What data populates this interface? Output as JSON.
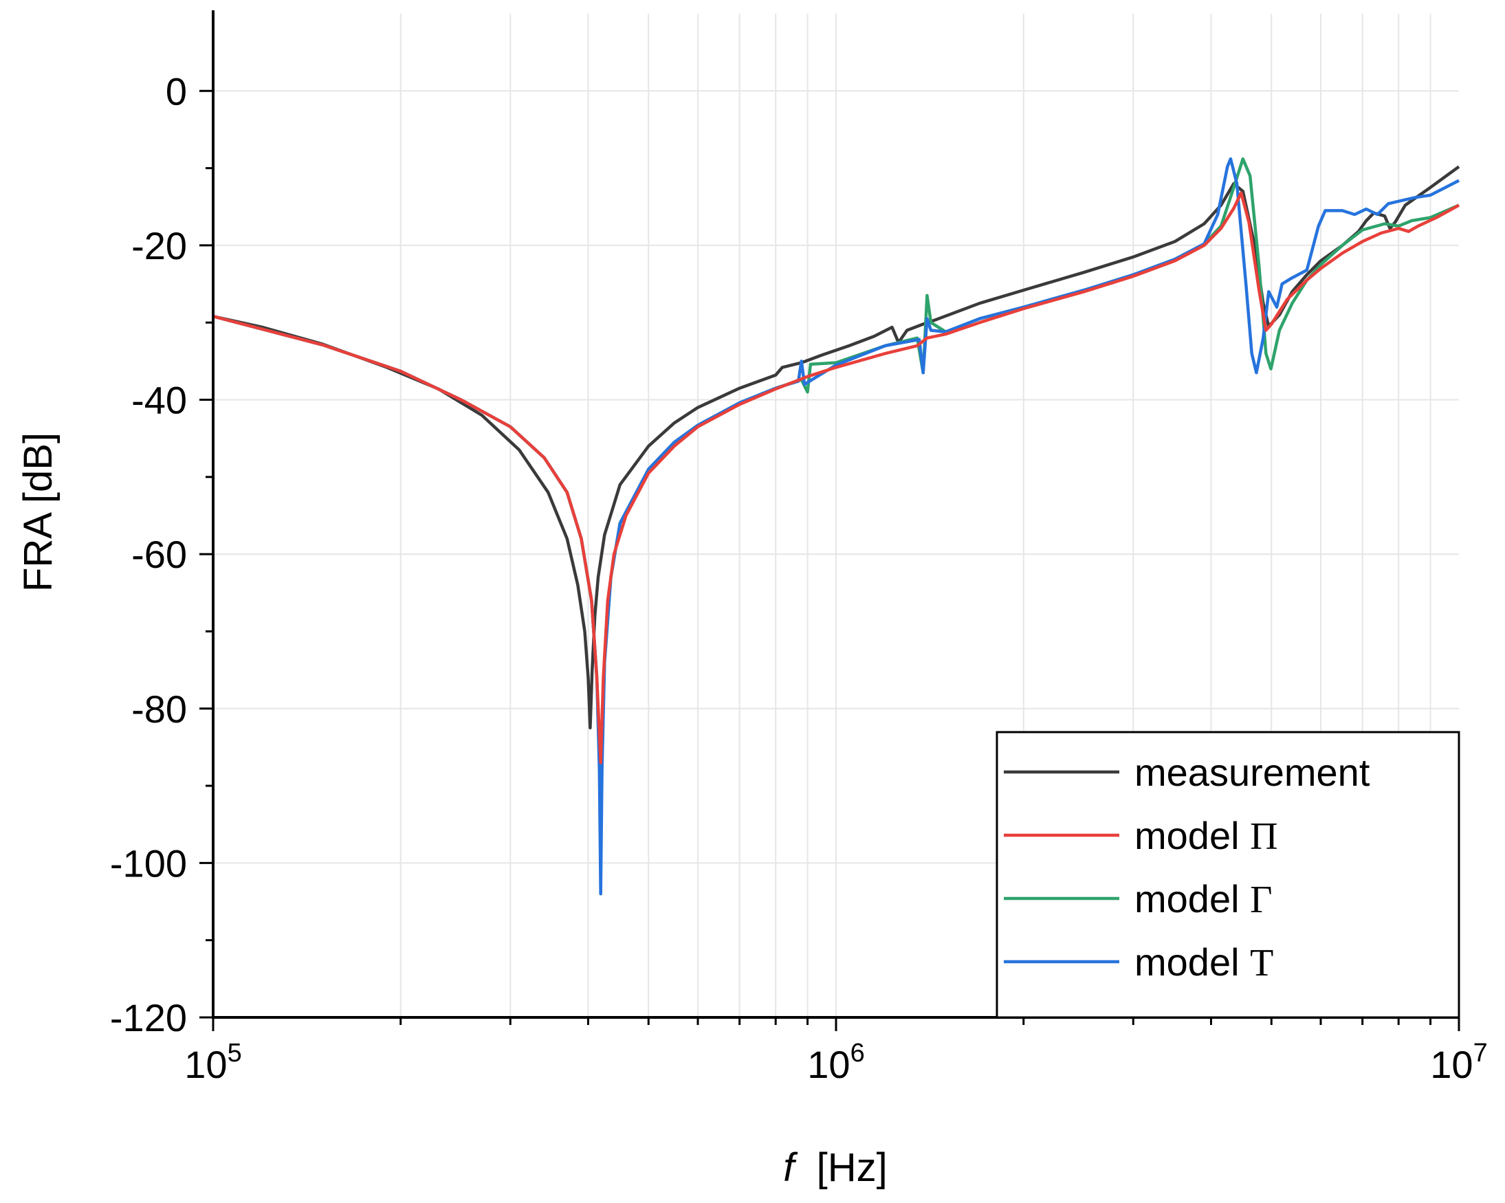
{
  "chart_data": {
    "type": "line",
    "title": "",
    "xlabel": "f",
    "xlabel_unit": "[Hz]",
    "ylabel": "FRA [dB]",
    "xscale": "log",
    "xlim": [
      100000,
      10000000
    ],
    "ylim": [
      -120,
      10
    ],
    "grid": true,
    "legend_position": "bottom-right",
    "y_ticks": [
      0,
      -20,
      -40,
      -60,
      -80,
      -100,
      -120
    ],
    "y_tick_labels": [
      "0",
      "-20",
      "-40",
      "-60",
      "-80",
      "-100",
      "-120"
    ],
    "x_ticks": [
      {
        "value": 100000,
        "base": "10",
        "exp": "5"
      },
      {
        "value": 1000000,
        "base": "10",
        "exp": "6"
      },
      {
        "value": 10000000,
        "base": "10",
        "exp": "7"
      }
    ],
    "series": [
      {
        "name": "measurement",
        "label": "measurement",
        "symbol": "",
        "color": "#3a3a3a",
        "points": [
          [
            100000,
            -29.2
          ],
          [
            120000,
            -30.6
          ],
          [
            150000,
            -32.8
          ],
          [
            190000,
            -35.8
          ],
          [
            230000,
            -38.6
          ],
          [
            270000,
            -42
          ],
          [
            310000,
            -46.5
          ],
          [
            345000,
            -52
          ],
          [
            370000,
            -58
          ],
          [
            385000,
            -64
          ],
          [
            395000,
            -70
          ],
          [
            400000,
            -76
          ],
          [
            403000,
            -82.5
          ],
          [
            406000,
            -75
          ],
          [
            410000,
            -68
          ],
          [
            415000,
            -63
          ],
          [
            425000,
            -57.5
          ],
          [
            450000,
            -51
          ],
          [
            500000,
            -46
          ],
          [
            550000,
            -43
          ],
          [
            600000,
            -41
          ],
          [
            700000,
            -38.5
          ],
          [
            800000,
            -36.8
          ],
          [
            820000,
            -35.8
          ],
          [
            880000,
            -35.2
          ],
          [
            950000,
            -34.2
          ],
          [
            1050000,
            -33
          ],
          [
            1150000,
            -31.8
          ],
          [
            1230000,
            -30.6
          ],
          [
            1260000,
            -32.6
          ],
          [
            1300000,
            -31
          ],
          [
            1380000,
            -30.2
          ],
          [
            1450000,
            -29.6
          ],
          [
            1700000,
            -27.5
          ],
          [
            2000000,
            -25.8
          ],
          [
            2500000,
            -23.5
          ],
          [
            3000000,
            -21.5
          ],
          [
            3500000,
            -19.5
          ],
          [
            3900000,
            -17.2
          ],
          [
            4150000,
            -14.8
          ],
          [
            4350000,
            -12
          ],
          [
            4500000,
            -13
          ],
          [
            4700000,
            -20
          ],
          [
            4850000,
            -27.5
          ],
          [
            4950000,
            -30.5
          ],
          [
            5150000,
            -29
          ],
          [
            5400000,
            -26
          ],
          [
            5700000,
            -23.8
          ],
          [
            6000000,
            -22
          ],
          [
            6500000,
            -20
          ],
          [
            6900000,
            -18.2
          ],
          [
            7100000,
            -16.8
          ],
          [
            7300000,
            -15.8
          ],
          [
            7600000,
            -16.2
          ],
          [
            7750000,
            -17.8
          ],
          [
            7900000,
            -17
          ],
          [
            8200000,
            -14.8
          ],
          [
            9000000,
            -12.5
          ],
          [
            10000000,
            -9.8
          ]
        ]
      },
      {
        "name": "model Γ",
        "label": "model ",
        "symbol": "Γ",
        "color": "#2ea36b",
        "points": [
          [
            100000,
            -29.2
          ],
          [
            150000,
            -32.9
          ],
          [
            200000,
            -36.3
          ],
          [
            250000,
            -40
          ],
          [
            300000,
            -43.5
          ],
          [
            340000,
            -47.5
          ],
          [
            370000,
            -52
          ],
          [
            390000,
            -58
          ],
          [
            405000,
            -66
          ],
          [
            413000,
            -76
          ],
          [
            417000,
            -85
          ],
          [
            419000,
            -96
          ],
          [
            421000,
            -86
          ],
          [
            425000,
            -74
          ],
          [
            435000,
            -63
          ],
          [
            450000,
            -56
          ],
          [
            500000,
            -49
          ],
          [
            550000,
            -45.5
          ],
          [
            600000,
            -43.3
          ],
          [
            700000,
            -40.4
          ],
          [
            800000,
            -38.5
          ],
          [
            880000,
            -37.4
          ],
          [
            900000,
            -39
          ],
          [
            910000,
            -35.4
          ],
          [
            1000000,
            -35.2
          ],
          [
            1200000,
            -33
          ],
          [
            1350000,
            -32
          ],
          [
            1380000,
            -36.5
          ],
          [
            1400000,
            -26.5
          ],
          [
            1420000,
            -30
          ],
          [
            1500000,
            -31.2
          ],
          [
            1700000,
            -29.5
          ],
          [
            2000000,
            -28
          ],
          [
            2500000,
            -25.8
          ],
          [
            3000000,
            -23.8
          ],
          [
            3500000,
            -21.8
          ],
          [
            3900000,
            -19.8
          ],
          [
            4150000,
            -17.5
          ],
          [
            4350000,
            -12.5
          ],
          [
            4500000,
            -8.8
          ],
          [
            4620000,
            -11
          ],
          [
            4780000,
            -23
          ],
          [
            4900000,
            -34
          ],
          [
            4990000,
            -36
          ],
          [
            5150000,
            -31
          ],
          [
            5400000,
            -27.5
          ],
          [
            5700000,
            -24.5
          ],
          [
            6000000,
            -22.5
          ],
          [
            6500000,
            -20
          ],
          [
            7000000,
            -18
          ],
          [
            7600000,
            -17.2
          ],
          [
            8000000,
            -17.5
          ],
          [
            8400000,
            -16.8
          ],
          [
            9000000,
            -16.4
          ],
          [
            10000000,
            -14.8
          ]
        ]
      },
      {
        "name": "model Τ",
        "label": "model ",
        "symbol": "Τ",
        "color": "#2673dd",
        "points": [
          [
            100000,
            -29.2
          ],
          [
            150000,
            -32.9
          ],
          [
            200000,
            -36.3
          ],
          [
            250000,
            -40
          ],
          [
            300000,
            -43.5
          ],
          [
            340000,
            -47.5
          ],
          [
            370000,
            -52
          ],
          [
            390000,
            -58
          ],
          [
            405000,
            -66
          ],
          [
            413000,
            -76
          ],
          [
            417000,
            -88
          ],
          [
            419000,
            -104
          ],
          [
            421000,
            -88
          ],
          [
            425000,
            -74
          ],
          [
            435000,
            -63
          ],
          [
            450000,
            -56
          ],
          [
            500000,
            -49
          ],
          [
            550000,
            -45.5
          ],
          [
            600000,
            -43.3
          ],
          [
            700000,
            -40.4
          ],
          [
            800000,
            -38.5
          ],
          [
            870000,
            -37.6
          ],
          [
            880000,
            -35
          ],
          [
            890000,
            -38
          ],
          [
            1000000,
            -35.5
          ],
          [
            1200000,
            -33
          ],
          [
            1360000,
            -32.2
          ],
          [
            1380000,
            -36.5
          ],
          [
            1400000,
            -29.5
          ],
          [
            1420000,
            -31
          ],
          [
            1500000,
            -31.2
          ],
          [
            1700000,
            -29.5
          ],
          [
            2000000,
            -28
          ],
          [
            2500000,
            -25.8
          ],
          [
            3000000,
            -23.8
          ],
          [
            3500000,
            -21.8
          ],
          [
            3900000,
            -19.8
          ],
          [
            4100000,
            -16
          ],
          [
            4250000,
            -9.8
          ],
          [
            4300000,
            -8.8
          ],
          [
            4400000,
            -12
          ],
          [
            4550000,
            -25
          ],
          [
            4650000,
            -34
          ],
          [
            4730000,
            -36.5
          ],
          [
            4850000,
            -32
          ],
          [
            4950000,
            -26
          ],
          [
            5100000,
            -28
          ],
          [
            5200000,
            -25
          ],
          [
            5400000,
            -24.2
          ],
          [
            5700000,
            -23.2
          ],
          [
            5950000,
            -17.5
          ],
          [
            6100000,
            -15.5
          ],
          [
            6500000,
            -15.5
          ],
          [
            6800000,
            -16
          ],
          [
            7100000,
            -15.3
          ],
          [
            7400000,
            -16
          ],
          [
            7700000,
            -14.6
          ],
          [
            8500000,
            -13.8
          ],
          [
            9000000,
            -13.5
          ],
          [
            10000000,
            -11.6
          ]
        ]
      },
      {
        "name": "model Π",
        "label": "model ",
        "symbol": "Π",
        "color": "#e8403a",
        "points": [
          [
            100000,
            -29.2
          ],
          [
            150000,
            -32.9
          ],
          [
            200000,
            -36.3
          ],
          [
            250000,
            -40
          ],
          [
            300000,
            -43.5
          ],
          [
            340000,
            -47.5
          ],
          [
            370000,
            -52
          ],
          [
            390000,
            -58
          ],
          [
            405000,
            -66
          ],
          [
            413000,
            -76
          ],
          [
            419000,
            -87
          ],
          [
            423000,
            -76
          ],
          [
            430000,
            -66
          ],
          [
            440000,
            -60
          ],
          [
            460000,
            -55
          ],
          [
            500000,
            -49.5
          ],
          [
            550000,
            -46
          ],
          [
            600000,
            -43.5
          ],
          [
            700000,
            -40.6
          ],
          [
            800000,
            -38.6
          ],
          [
            900000,
            -37
          ],
          [
            1000000,
            -35.8
          ],
          [
            1200000,
            -34
          ],
          [
            1350000,
            -33
          ],
          [
            1400000,
            -32
          ],
          [
            1500000,
            -31.5
          ],
          [
            1700000,
            -30
          ],
          [
            2000000,
            -28.2
          ],
          [
            2500000,
            -26
          ],
          [
            3000000,
            -24
          ],
          [
            3500000,
            -22
          ],
          [
            3900000,
            -20
          ],
          [
            4150000,
            -17.8
          ],
          [
            4350000,
            -15.2
          ],
          [
            4470000,
            -13.2
          ],
          [
            4600000,
            -17
          ],
          [
            4780000,
            -26
          ],
          [
            4900000,
            -31
          ],
          [
            5000000,
            -30.2
          ],
          [
            5300000,
            -27
          ],
          [
            5700000,
            -24.5
          ],
          [
            6000000,
            -23
          ],
          [
            6500000,
            -21
          ],
          [
            7000000,
            -19.5
          ],
          [
            7500000,
            -18.4
          ],
          [
            8000000,
            -17.8
          ],
          [
            8300000,
            -18.2
          ],
          [
            8600000,
            -17.5
          ],
          [
            9200000,
            -16.4
          ],
          [
            10000000,
            -14.8
          ]
        ]
      }
    ],
    "legend": [
      {
        "label": "measurement",
        "symbol": "",
        "color": "#3a3a3a"
      },
      {
        "label": "model ",
        "symbol": "Π",
        "color": "#e8403a"
      },
      {
        "label": "model ",
        "symbol": "Γ",
        "color": "#2ea36b"
      },
      {
        "label": "model ",
        "symbol": "Τ",
        "color": "#2673dd"
      }
    ]
  }
}
